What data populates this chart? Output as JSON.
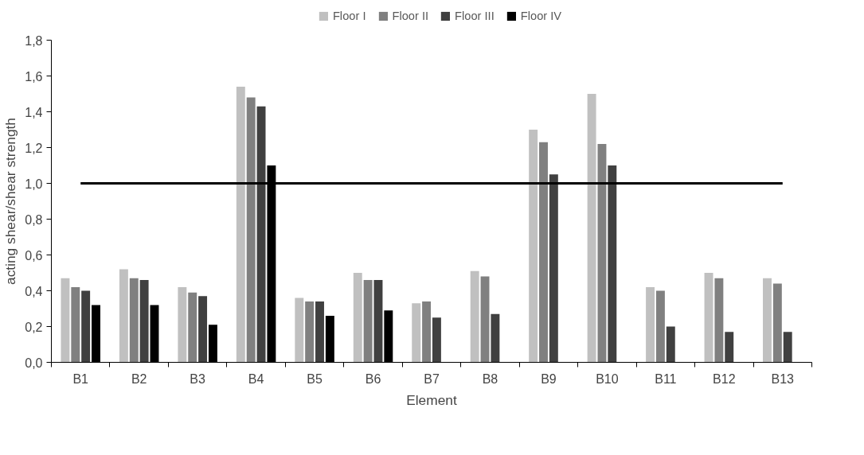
{
  "chart_data": {
    "type": "bar",
    "xlabel": "Element",
    "ylabel": "acting shear/shear strength",
    "categories": [
      "B1",
      "B2",
      "B3",
      "B4",
      "B5",
      "B6",
      "B7",
      "B8",
      "B9",
      "B10",
      "B11",
      "B12",
      "B13"
    ],
    "series": [
      {
        "name": "Floor I",
        "color": "#c0c0c0",
        "values": [
          0.47,
          0.52,
          0.42,
          1.54,
          0.36,
          0.5,
          0.33,
          0.51,
          1.3,
          1.5,
          0.42,
          0.5,
          0.47
        ]
      },
      {
        "name": "Floor II",
        "color": "#808080",
        "values": [
          0.42,
          0.47,
          0.39,
          1.48,
          0.34,
          0.46,
          0.34,
          0.48,
          1.23,
          1.22,
          0.4,
          0.47,
          0.44
        ]
      },
      {
        "name": "Floor III",
        "color": "#404040",
        "values": [
          0.4,
          0.46,
          0.37,
          1.43,
          0.34,
          0.46,
          0.25,
          0.27,
          1.05,
          1.1,
          0.2,
          0.17,
          0.17
        ]
      },
      {
        "name": "Floor IV",
        "color": "#000000",
        "values": [
          0.32,
          0.32,
          0.21,
          1.1,
          0.26,
          0.29,
          null,
          null,
          null,
          null,
          null,
          null,
          null
        ]
      },
      {
        "type": "line",
        "color": "#000000",
        "values": [
          1.0,
          1.0,
          1.0,
          1.0,
          1.0,
          1.0,
          1.0,
          1.0,
          1.0,
          1.0,
          1.0,
          1.0,
          1.0
        ]
      }
    ],
    "ylim": [
      0,
      1.8
    ],
    "yticks": [
      {
        "value": 0,
        "label": "0,0"
      },
      {
        "value": 0.2,
        "label": "0,2"
      },
      {
        "value": 0.4,
        "label": "0,4"
      },
      {
        "value": 0.6,
        "label": "0,6"
      },
      {
        "value": 0.8,
        "label": "0,8"
      },
      {
        "value": 1.0,
        "label": "1,0"
      },
      {
        "value": 1.2,
        "label": "1,2"
      },
      {
        "value": 1.4,
        "label": "1,4"
      },
      {
        "value": 1.6,
        "label": "1,6"
      },
      {
        "value": 1.8,
        "label": "1,8"
      }
    ],
    "grid": false,
    "legend": "top"
  }
}
